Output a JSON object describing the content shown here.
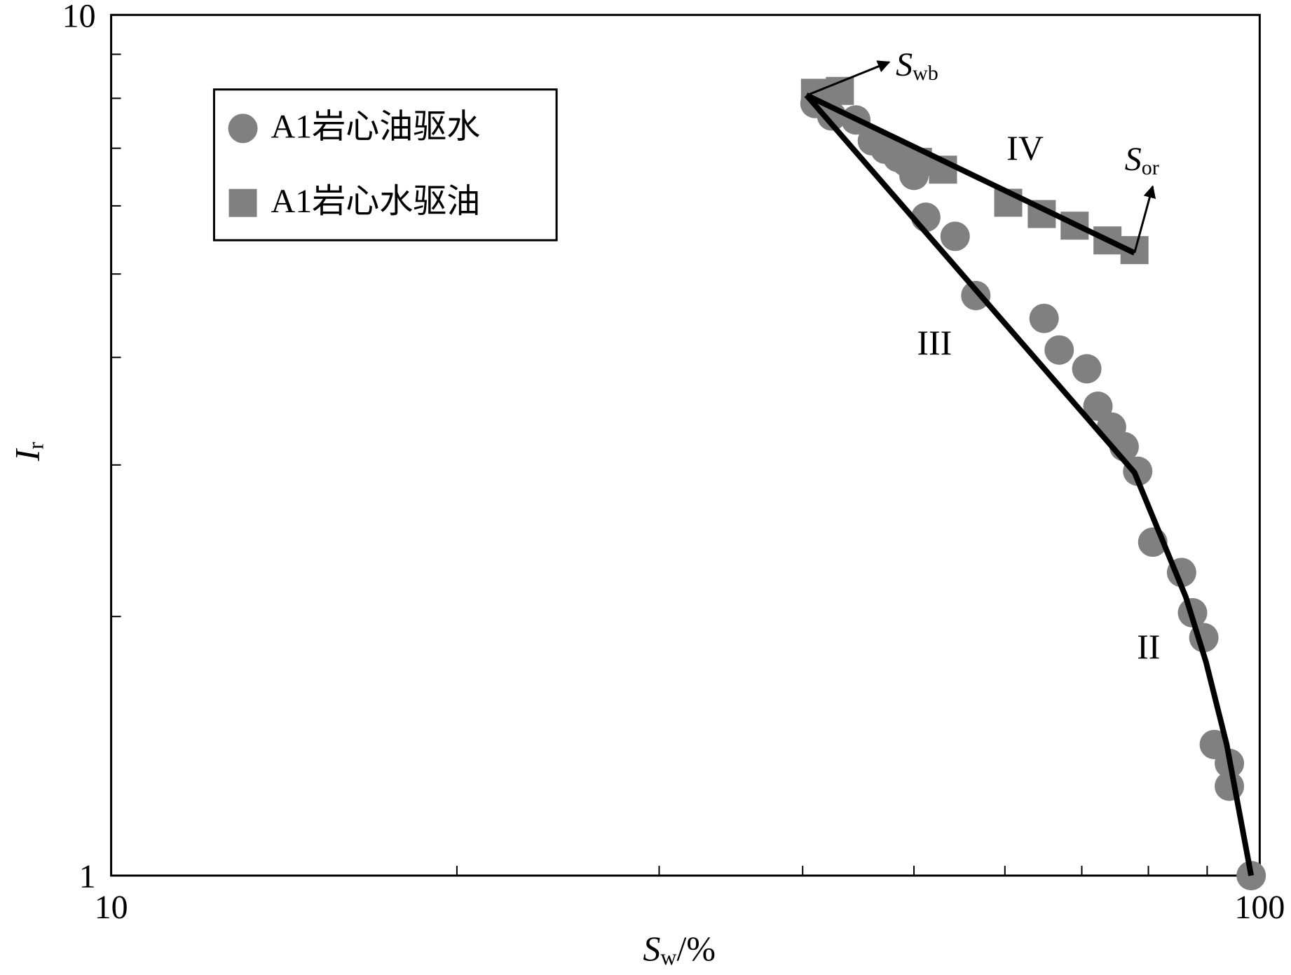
{
  "chart_data": {
    "type": "scatter",
    "x_label": {
      "main": "S",
      "sub": "w",
      "suffix": "/%"
    },
    "y_label": {
      "main": "I",
      "sub": "r"
    },
    "log_x": true,
    "log_y": true,
    "xlim": [
      10,
      100
    ],
    "ylim": [
      1,
      10
    ],
    "xticks": [
      10,
      100
    ],
    "yticks": [
      1,
      10
    ],
    "x_minor_ticks": [
      20,
      30,
      40,
      50,
      60,
      70,
      80,
      90
    ],
    "y_minor_ticks": [
      2,
      3,
      4,
      5,
      6,
      7,
      8,
      9
    ],
    "legend": "upper left",
    "series": [
      {
        "name": "A1岩心油驱水",
        "color": "#808080",
        "marker": "circle",
        "x": [
          41.0,
          42.4,
          44.5,
          46.0,
          47.2,
          48.4,
          49.2,
          50.0,
          51.2,
          54.3,
          56.6,
          64.9,
          66.9,
          70.7,
          72.3,
          74.3,
          76.2,
          78.3,
          80.7,
          85.5,
          87.4,
          89.4,
          91.3,
          94.1,
          94.1,
          98.3
        ],
        "values": [
          7.89,
          7.63,
          7.55,
          7.14,
          6.98,
          6.83,
          6.75,
          6.51,
          5.82,
          5.53,
          4.72,
          4.44,
          4.08,
          3.88,
          3.51,
          3.32,
          3.15,
          2.95,
          2.44,
          2.25,
          2.02,
          1.89,
          1.42,
          1.35,
          1.27,
          1.0
        ]
      },
      {
        "name": "A1岩心水驱油",
        "color": "#808080",
        "marker": "square",
        "x": [
          41.0,
          43.1,
          50.4,
          53.0,
          60.4,
          64.6,
          69.0,
          73.7,
          77.8
        ],
        "values": [
          8.12,
          8.16,
          6.75,
          6.61,
          6.05,
          5.87,
          5.69,
          5.47,
          5.33
        ]
      }
    ],
    "fit_lines": [
      {
        "color": "#000000",
        "x": [
          40.3,
          77.8,
          86.2,
          89.8,
          93.6,
          98.3
        ],
        "values": [
          8.07,
          2.94,
          2.11,
          1.77,
          1.42,
          1.0
        ]
      },
      {
        "color": "#000000",
        "x": [
          40.3,
          77.8
        ],
        "values": [
          8.07,
          5.29
        ]
      }
    ],
    "annotations": [
      {
        "main": "S",
        "sub": "wb"
      },
      {
        "main": "S",
        "sub": "or"
      }
    ],
    "region_labels": [
      "IV",
      "III",
      "II"
    ]
  }
}
